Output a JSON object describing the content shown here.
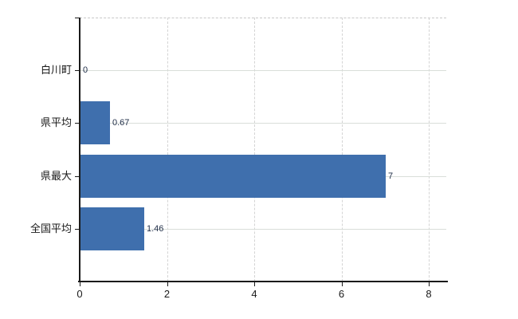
{
  "chart_data": {
    "type": "bar",
    "orientation": "horizontal",
    "title": "",
    "categories": [
      "白川町",
      "県平均",
      "県最大",
      "全国平均"
    ],
    "values": [
      0,
      0.67,
      7,
      1.46
    ],
    "value_labels": [
      "0",
      "0.67",
      "7",
      "1.46"
    ],
    "xlim": [
      0,
      8.4
    ],
    "x_ticks": [
      0,
      2,
      4,
      6,
      8
    ],
    "x_tick_labels": [
      "0",
      "2",
      "4",
      "6",
      "8"
    ],
    "grid": true,
    "legend": false,
    "colors": {
      "bar": "#3f6fad",
      "grid_line_horizontal": "#d9ded9",
      "grid_line_vertical": "#d4d4d4",
      "top_border": "#c8c8c8",
      "axis": "#1a1a1a",
      "text": "#1a1a1a",
      "background": "#ffffff"
    }
  }
}
